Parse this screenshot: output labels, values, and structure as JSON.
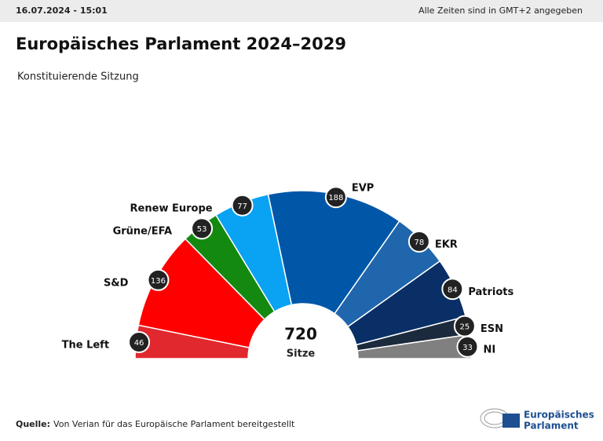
{
  "header": {
    "timestamp": "16.07.2024 - 15:01",
    "timezone_note": "Alle Zeiten sind in GMT+2 angegeben"
  },
  "chart_data": {
    "type": "parliament",
    "title": "Europäisches Parlament 2024–2029",
    "subtitle": "Konstituierende Sitzung",
    "categories": [
      "The Left",
      "S&D",
      "Grüne/EFA",
      "Renew Europe",
      "EVP",
      "EKR",
      "Patriots",
      "ESN",
      "NI"
    ],
    "values": [
      46,
      136,
      53,
      77,
      188,
      78,
      84,
      25,
      33
    ],
    "colors": [
      "#e0282e",
      "#ff0000",
      "#138a0f",
      "#0aa2f2",
      "#0057a8",
      "#1f66ad",
      "#0a2f66",
      "#1b2a3c",
      "#808080"
    ],
    "total": 720,
    "total_label": "Sitze"
  },
  "source": {
    "label": "Quelle:",
    "text": "Von Verian für das Europäische Parlament bereitgestellt"
  },
  "logo": {
    "lines": [
      "Europäisches",
      "Parlament"
    ]
  }
}
